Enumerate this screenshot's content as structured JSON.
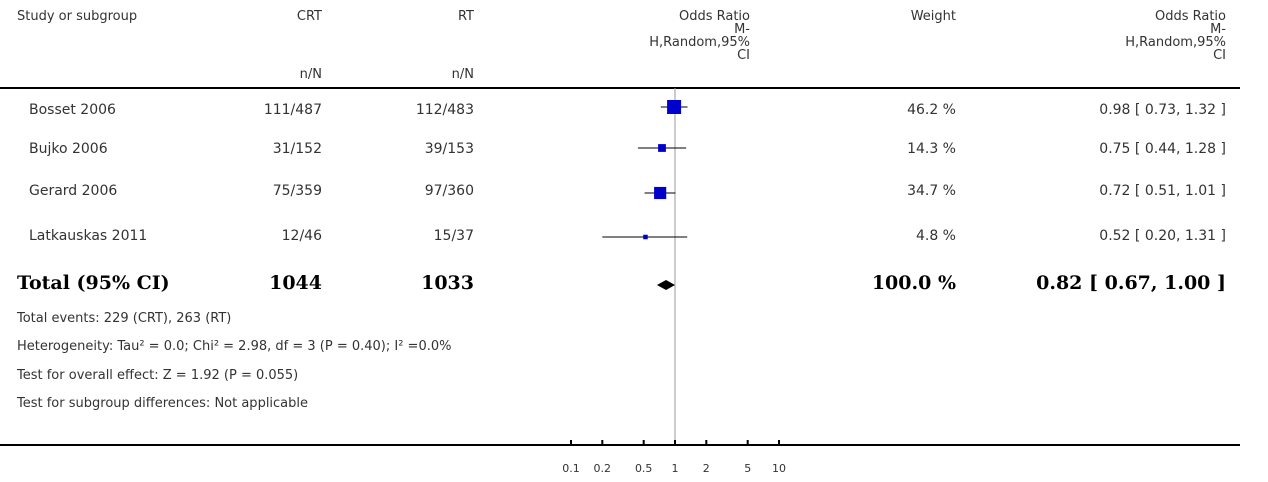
{
  "header": {
    "study": "Study or subgroup",
    "group1": "CRT",
    "group2": "RT",
    "group1_sub": "n/N",
    "group2_sub": "n/N",
    "plot_title_lines": [
      "Odds Ratio",
      "M-",
      "H,Random,95%",
      "CI"
    ],
    "weight": "Weight",
    "or_title_lines": [
      "Odds Ratio",
      "M-",
      "H,Random,95%",
      "CI"
    ]
  },
  "rows": [
    {
      "study": "Bosset 2006",
      "g1": "111/487",
      "g2": "112/483",
      "weight": "46.2 %",
      "ci_text": "0.98 [ 0.73, 1.32 ]"
    },
    {
      "study": "Bujko 2006",
      "g1": "31/152",
      "g2": "39/153",
      "weight": "14.3 %",
      "ci_text": "0.75 [ 0.44, 1.28 ]"
    },
    {
      "study": "Gerard 2006",
      "g1": "75/359",
      "g2": "97/360",
      "weight": "34.7 %",
      "ci_text": "0.72 [ 0.51, 1.01 ]"
    },
    {
      "study": "Latkauskas 2011",
      "g1": "12/46",
      "g2": "15/37",
      "weight": "4.8 %",
      "ci_text": "0.52 [ 0.20, 1.31 ]"
    }
  ],
  "total": {
    "label": "Total (95% CI)",
    "g1": "1044",
    "g2": "1033",
    "weight": "100.0 %",
    "ci_text": "0.82 [ 0.67, 1.00 ]"
  },
  "footer": {
    "events": "Total events: 229 (CRT), 263 (RT)",
    "heterogeneity": "Heterogeneity: Tau² = 0.0; Chi² = 2.98, df = 3 (P = 0.40); I² =0.0%",
    "overall": "Test for overall effect: Z = 1.92 (P = 0.055)",
    "subgroup": "Test for subgroup differences: Not applicable"
  },
  "chart_data": {
    "type": "forest",
    "scale": "log",
    "x_ticks": [
      0.1,
      0.2,
      0.5,
      1,
      2,
      5,
      10
    ],
    "x_tick_labels": [
      "0.1",
      "0.2",
      "0.5",
      "1",
      "2",
      "5",
      "10"
    ],
    "reference_line": 1,
    "marker_color": "#0000cc",
    "studies": [
      {
        "name": "Bosset 2006",
        "or": 0.98,
        "lo": 0.73,
        "hi": 1.32,
        "weight": 46.2
      },
      {
        "name": "Bujko 2006",
        "or": 0.75,
        "lo": 0.44,
        "hi": 1.28,
        "weight": 14.3
      },
      {
        "name": "Gerard 2006",
        "or": 0.72,
        "lo": 0.51,
        "hi": 1.01,
        "weight": 34.7
      },
      {
        "name": "Latkauskas 2011",
        "or": 0.52,
        "lo": 0.2,
        "hi": 1.31,
        "weight": 4.8
      }
    ],
    "pooled": {
      "or": 0.82,
      "lo": 0.67,
      "hi": 1.0
    }
  }
}
